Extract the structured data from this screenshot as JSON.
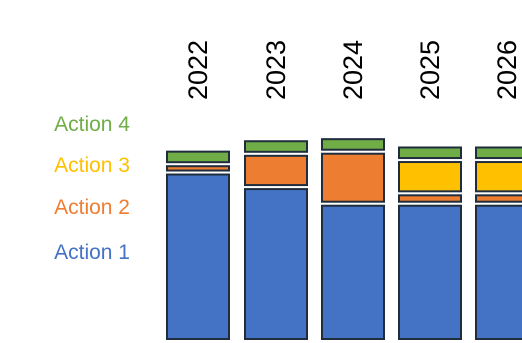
{
  "chart_data": {
    "type": "bar",
    "stacked": true,
    "categories": [
      "2022",
      "2023",
      "2024",
      "2025",
      "2026"
    ],
    "series": [
      {
        "name": "Action 1",
        "color": "#4472C4",
        "values": [
          81,
          74,
          66,
          66,
          66
        ]
      },
      {
        "name": "Action 2",
        "color": "#ED7D31",
        "values": [
          4,
          16,
          25,
          5,
          5
        ]
      },
      {
        "name": "Action 3",
        "color": "#FFC000",
        "values": [
          0,
          0,
          0,
          16,
          16
        ]
      },
      {
        "name": "Action 4",
        "color": "#70AD47",
        "values": [
          7,
          7,
          7,
          7,
          7
        ]
      }
    ],
    "title": "",
    "xlabel": "",
    "ylabel": "",
    "ylim": [
      0,
      100
    ],
    "grid": false,
    "legend_position": "left"
  }
}
